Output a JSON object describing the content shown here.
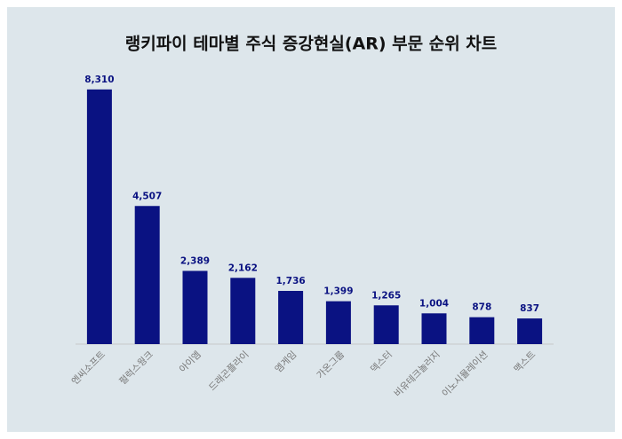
{
  "chart_data": {
    "type": "bar",
    "title": "랭키파이 테마별 주식 증강현실(AR) 부문 순위 차트",
    "categories": [
      "엔씨소프트",
      "펄럭스웡크",
      "아이엠",
      "드래곤플라이",
      "엠게임",
      "가온그룹",
      "덱스터",
      "비유테크놀러지",
      "이노시뮬레이션",
      "맥스트"
    ],
    "values": [
      8310,
      4507,
      2389,
      2162,
      1736,
      1399,
      1265,
      1004,
      878,
      837
    ],
    "value_labels": [
      "8,310",
      "4,507",
      "2,389",
      "2,162",
      "1,736",
      "1,399",
      "1,265",
      "1,004",
      "878",
      "837"
    ],
    "color": "#0a1282",
    "ylim": [
      0,
      9000
    ]
  }
}
